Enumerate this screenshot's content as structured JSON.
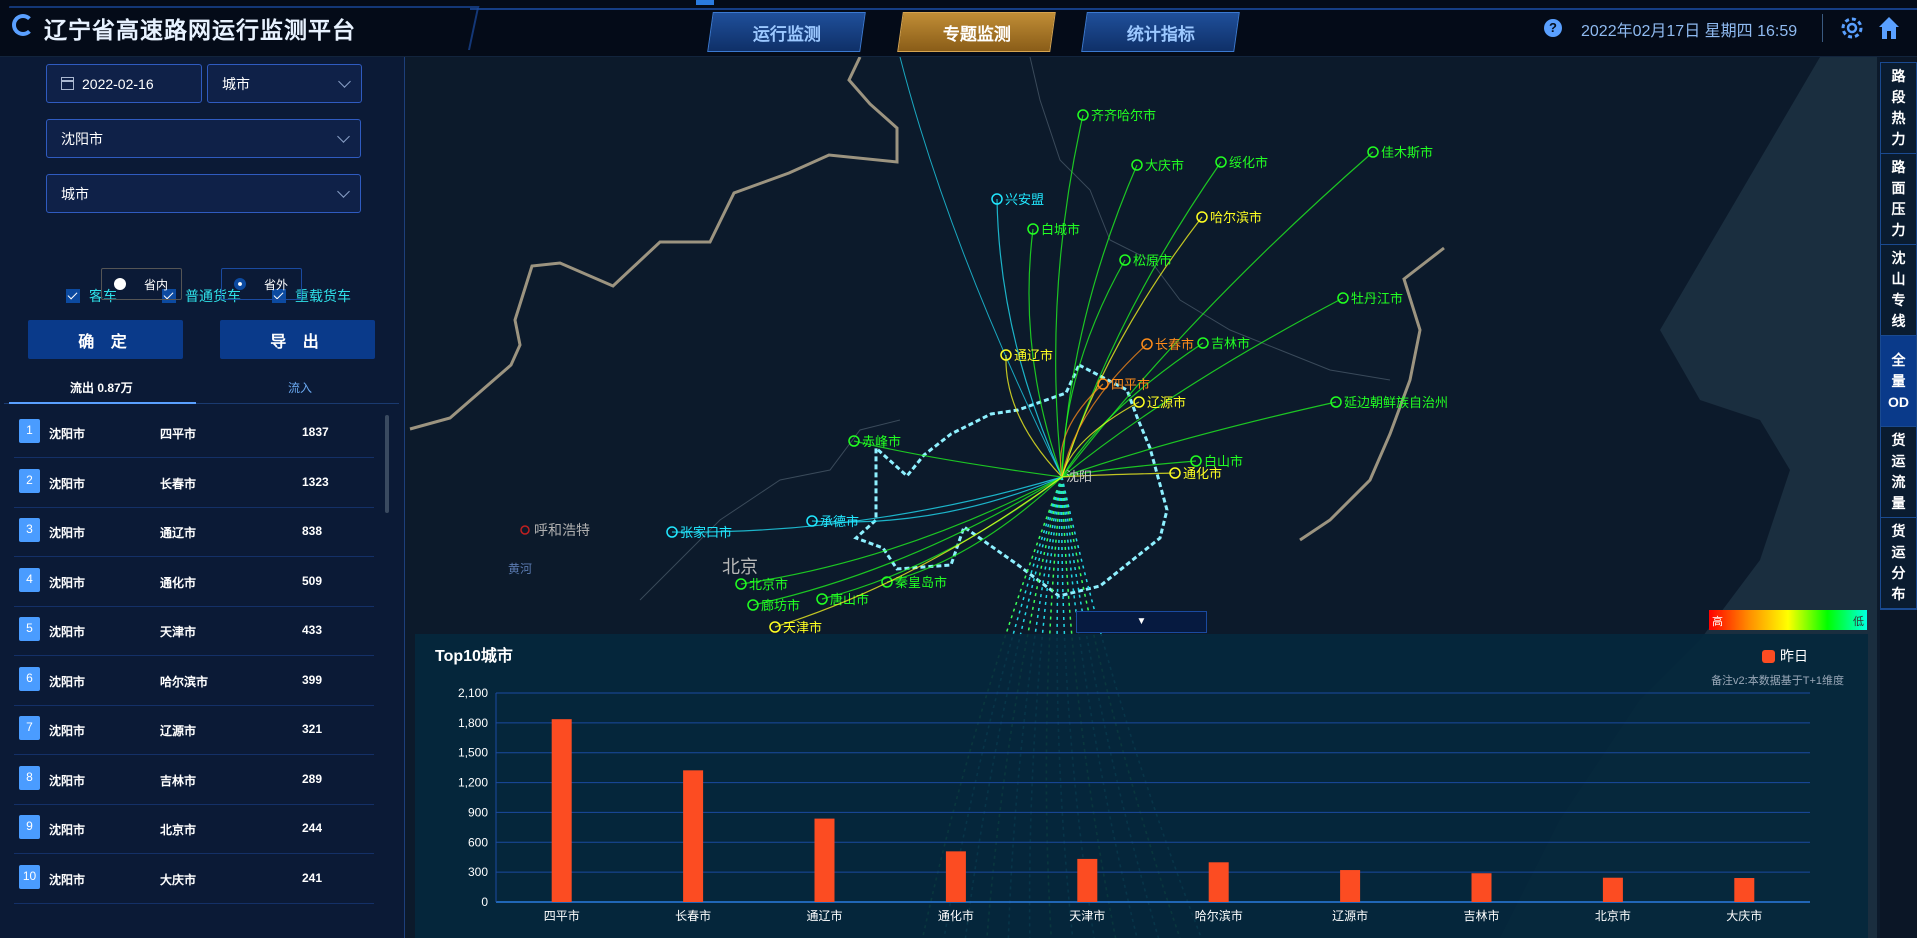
{
  "header": {
    "title": "辽宁省高速路网运行监测平台",
    "tabs": [
      {
        "label": "运行监测"
      },
      {
        "label": "专题监测",
        "active": true
      },
      {
        "label": "统计指标"
      }
    ],
    "help_icon": "?",
    "datetime": "2022年02月17日  星期四  16:59",
    "icons": [
      "help-icon",
      "gear-icon",
      "home-icon"
    ]
  },
  "filters": {
    "date": "2022-02-16",
    "level": "城市",
    "city": "沈阳市",
    "target_level": "城市",
    "checkboxes": [
      {
        "label": "客车",
        "checked": true
      },
      {
        "label": "普通货车",
        "checked": true
      },
      {
        "label": "重载货车",
        "checked": true
      }
    ],
    "radios": [
      {
        "label": "省内",
        "selected": false
      },
      {
        "label": "省外",
        "selected": true
      }
    ],
    "confirm_label": "确 定",
    "export_label": "导 出"
  },
  "list_tabs": {
    "outflow": "流出 0.87万",
    "inflow": "流入"
  },
  "flows": [
    {
      "rank": "1",
      "from": "沈阳市",
      "to": "四平市",
      "value": "1837"
    },
    {
      "rank": "2",
      "from": "沈阳市",
      "to": "长春市",
      "value": "1323"
    },
    {
      "rank": "3",
      "from": "沈阳市",
      "to": "通辽市",
      "value": "838"
    },
    {
      "rank": "4",
      "from": "沈阳市",
      "to": "通化市",
      "value": "509"
    },
    {
      "rank": "5",
      "from": "沈阳市",
      "to": "天津市",
      "value": "433"
    },
    {
      "rank": "6",
      "from": "沈阳市",
      "to": "哈尔滨市",
      "value": "399"
    },
    {
      "rank": "7",
      "from": "沈阳市",
      "to": "辽源市",
      "value": "321"
    },
    {
      "rank": "8",
      "from": "沈阳市",
      "to": "吉林市",
      "value": "289"
    },
    {
      "rank": "9",
      "from": "沈阳市",
      "to": "北京市",
      "value": "244"
    },
    {
      "rank": "10",
      "from": "沈阳市",
      "to": "大庆市",
      "value": "241"
    }
  ],
  "right_sidebar": [
    {
      "label": "路段热力"
    },
    {
      "label": "路面压力"
    },
    {
      "label": "沈山专线"
    },
    {
      "label": "全量OD",
      "active": true
    },
    {
      "label": "货运流量"
    },
    {
      "label": "货运分布"
    }
  ],
  "map": {
    "origin": "沈阳",
    "region_labels": [
      "北京",
      "黄河"
    ],
    "other_city": "呼和浩特",
    "cities": [
      {
        "name": "齐齐哈尔市",
        "color": "#22ff22"
      },
      {
        "name": "大庆市",
        "color": "#22ff22"
      },
      {
        "name": "绥化市",
        "color": "#22ff22"
      },
      {
        "name": "佳木斯市",
        "color": "#22ff22"
      },
      {
        "name": "兴安盟",
        "color": "#22e8ff"
      },
      {
        "name": "哈尔滨市",
        "color": "#ffff22"
      },
      {
        "name": "白城市",
        "color": "#22ff22"
      },
      {
        "name": "松原市",
        "color": "#22ff22"
      },
      {
        "name": "牡丹江市",
        "color": "#22ff22"
      },
      {
        "name": "长春市",
        "color": "#ff8c1a"
      },
      {
        "name": "吉林市",
        "color": "#22ff22"
      },
      {
        "name": "通辽市",
        "color": "#ffff22"
      },
      {
        "name": "四平市",
        "color": "#ff8c1a"
      },
      {
        "name": "辽源市",
        "color": "#ffff22"
      },
      {
        "name": "延边朝鲜族自治州",
        "color": "#22ff22"
      },
      {
        "name": "赤峰市",
        "color": "#22ff22"
      },
      {
        "name": "白山市",
        "color": "#22ff22"
      },
      {
        "name": "通化市",
        "color": "#ffff22"
      },
      {
        "name": "张家口市",
        "color": "#22e8ff"
      },
      {
        "name": "承德市",
        "color": "#22e8ff"
      },
      {
        "name": "北京市",
        "color": "#22ff22"
      },
      {
        "name": "秦皇岛市",
        "color": "#22ff22"
      },
      {
        "name": "唐山市",
        "color": "#22ff22"
      },
      {
        "name": "廊坊市",
        "color": "#22ff22"
      },
      {
        "name": "天津市",
        "color": "#ffff22"
      }
    ],
    "color_legend": {
      "high": "高",
      "low": "低"
    },
    "dropdown_icon": "▼"
  },
  "chart_data": {
    "type": "bar",
    "title": "Top10城市",
    "note": "备注v2:本数据基于T+1维度",
    "categories": [
      "四平市",
      "长春市",
      "通辽市",
      "通化市",
      "天津市",
      "哈尔滨市",
      "辽源市",
      "吉林市",
      "北京市",
      "大庆市"
    ],
    "series": [
      {
        "name": "昨日",
        "values": [
          1837,
          1323,
          838,
          509,
          433,
          399,
          321,
          289,
          244,
          241
        ],
        "color": "#fc4c22"
      }
    ],
    "ylim": [
      0,
      2100
    ],
    "yticks": [
      "0",
      "300",
      "600",
      "900",
      "1,200",
      "1,500",
      "1,800",
      "2,100"
    ],
    "grid": true,
    "legend": "top-right"
  }
}
